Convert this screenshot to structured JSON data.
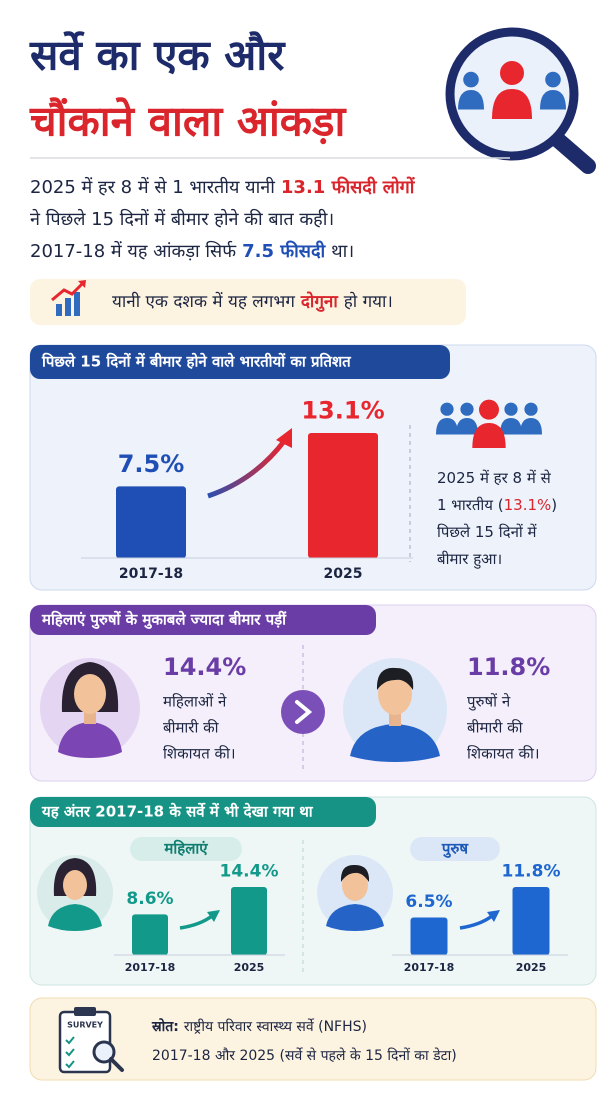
{
  "header": {
    "title_lines": [
      "सर्वे का एक और",
      "चौंकाने वाला आंकड़ा"
    ]
  },
  "intro": {
    "lines": [
      [
        "2025 में हर 8 में से 1 भारतीय यानी",
        "13.1 फीसदी लोगों"
      ],
      [
        "ने पिछले 15 दिनों में बीमार होने की बात कही।"
      ],
      [
        "2017-18 में यह आंकड़ा सिर्फ",
        "7.5 फीसदी",
        "था।"
      ]
    ]
  },
  "callout": [
    "यानी एक दशक में यह लगभग",
    "दोगुना",
    "हो गया।"
  ],
  "note": {
    "lines": [
      [
        "2025 में हर 8 में से"
      ],
      [
        "1 भारतीय (",
        "13.1%",
        ")"
      ],
      [
        "पिछले 15 दिनों में"
      ],
      [
        "बीमार हुआ।"
      ]
    ]
  },
  "comparison": {
    "title": "महिलाएं पुरुषों के मुकाबले ज्यादा बीमार पड़ीं",
    "women": {
      "value_label": "14.4%",
      "lines": [
        "महिलाओं ने",
        "बीमारी की",
        "शिकायत की।"
      ]
    },
    "men": {
      "value_label": "11.8%",
      "lines": [
        "पुरुषों ने",
        "बीमारी की",
        "शिकायत की।"
      ]
    }
  },
  "history_title": "यह अंतर 2017-18 के सर्वे में भी देखा गया था",
  "source": {
    "icon_label": "SURVEY",
    "label": "स्रोत:",
    "lines": [
      "राष्ट्रीय परिवार स्वास्थ्य सर्वे (NFHS)",
      "2017-18 और 2025 (सर्वे से पहले के 15 दिनों का डेटा)"
    ]
  },
  "chart_data": [
    {
      "type": "bar",
      "title": "पिछले 15 दिनों में बीमार होने वाले भारतीयों का प्रतिशत",
      "categories": [
        "2017-18",
        "2025"
      ],
      "values": [
        7.5,
        13.1
      ],
      "value_labels": [
        "7.5%",
        "13.1%"
      ],
      "colors": [
        "#1f4fb4",
        "#e8262e"
      ]
    },
    {
      "type": "bar",
      "title": "महिलाएं",
      "categories": [
        "2017-18",
        "2025"
      ],
      "values": [
        8.6,
        14.4
      ],
      "value_labels": [
        "8.6%",
        "14.4%"
      ],
      "color": "#12998a"
    },
    {
      "type": "bar",
      "title": "पुरुष",
      "categories": [
        "2017-18",
        "2025"
      ],
      "values": [
        6.5,
        11.8
      ],
      "value_labels": [
        "6.5%",
        "11.8%"
      ],
      "color": "#1e66d0"
    }
  ]
}
